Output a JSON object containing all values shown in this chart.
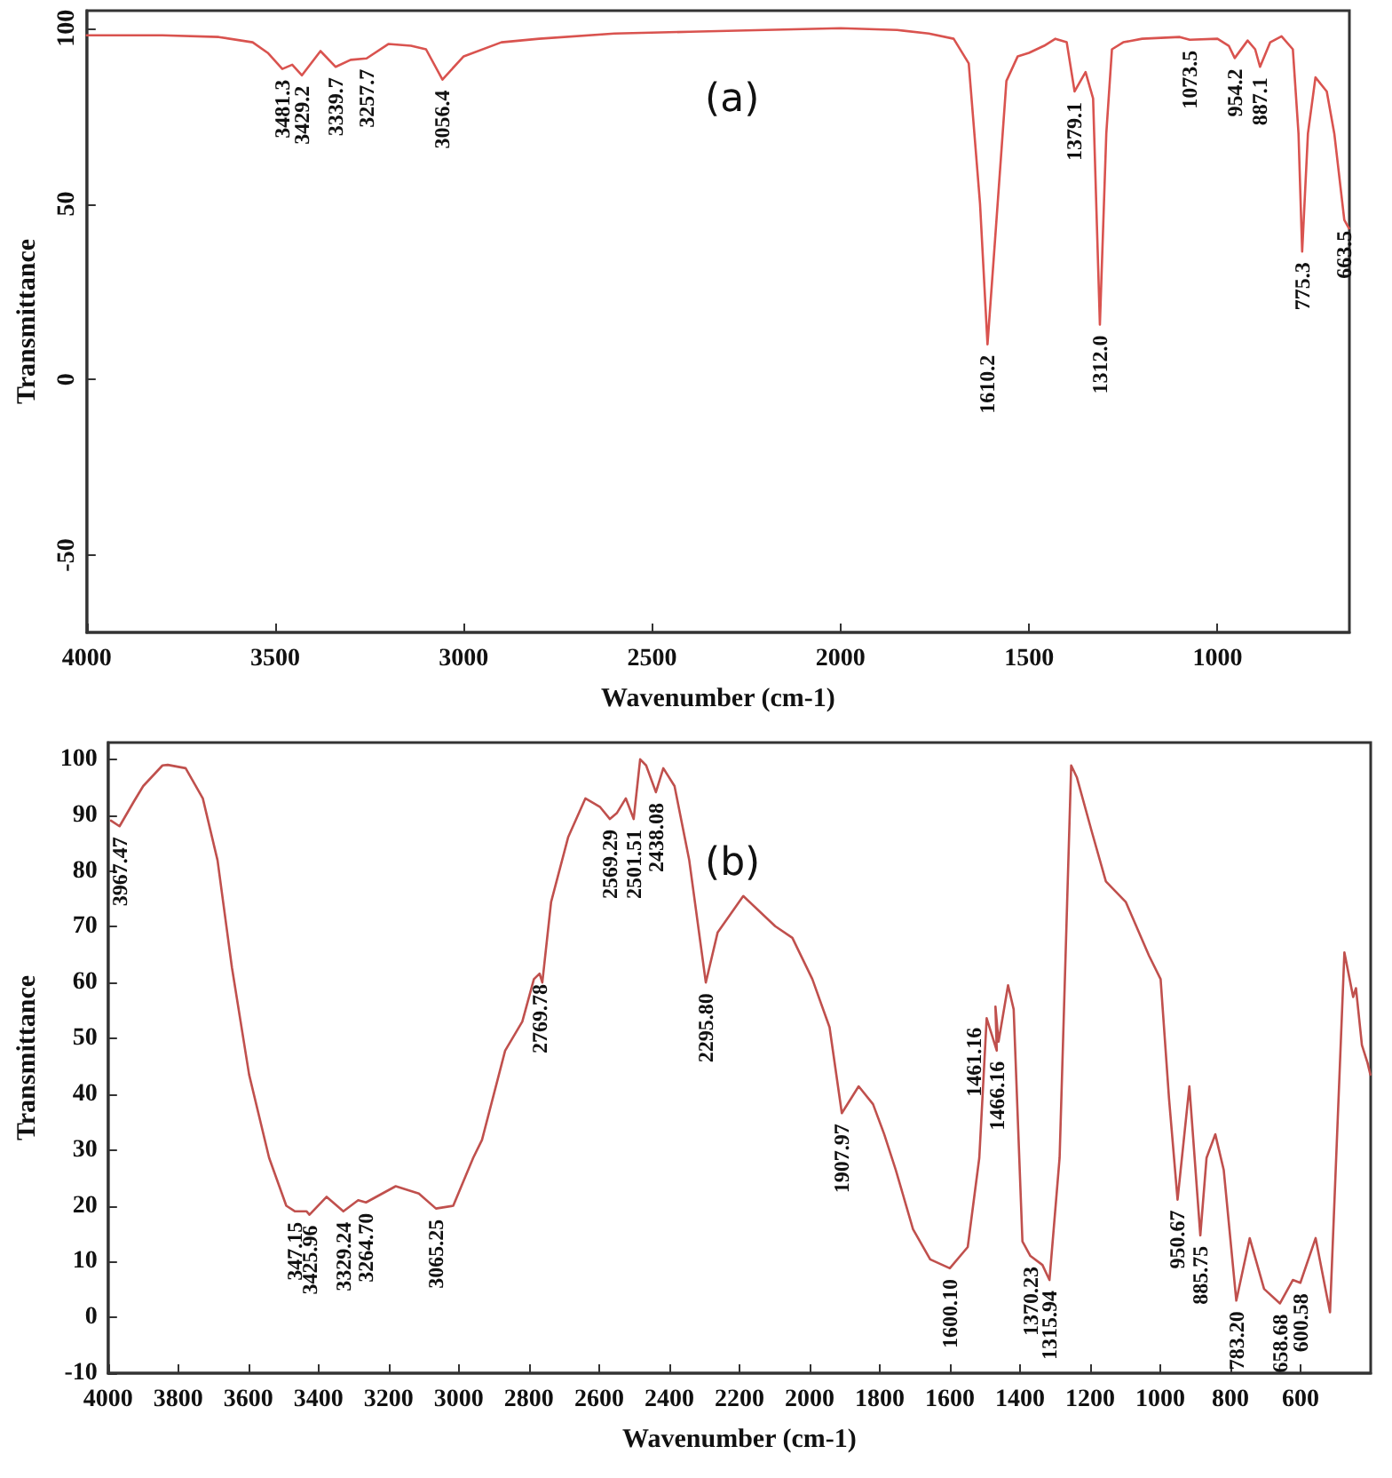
{
  "chart_data": [
    {
      "type": "line",
      "title": "(a)",
      "xlabel": "Wavenumber (cm-1)",
      "ylabel": "Transmittance",
      "xlim": [
        4000,
        650
      ],
      "xticks": [
        4000,
        3500,
        3000,
        2500,
        2000,
        1500,
        1000
      ],
      "ylim": [
        -72,
        105
      ],
      "yticks": [
        -50,
        0,
        50,
        100
      ],
      "grid": false,
      "marker": "none",
      "line_style": "solid",
      "series": [
        {
          "color": "#d9534f",
          "x": [
            4000,
            3800,
            3650,
            3560,
            3520,
            3481.3,
            3455,
            3429.2,
            3380,
            3339.7,
            3300,
            3257.7,
            3200,
            3140,
            3100,
            3056.4,
            3000,
            2900,
            2800,
            2600,
            2400,
            2200,
            2000,
            1850,
            1766,
            1700,
            1660,
            1630,
            1610.2,
            1590,
            1560,
            1530,
            1500,
            1460,
            1430,
            1400,
            1379.1,
            1350,
            1330,
            1312.0,
            1295,
            1280,
            1250,
            1200,
            1100,
            1073.5,
            1000,
            970,
            954.2,
            920,
            900,
            887.1,
            860,
            830,
            800,
            785,
            775.3,
            760,
            740,
            710,
            690,
            663.5,
            651
          ],
          "values": [
            98,
            98,
            97.5,
            96,
            93,
            88.4,
            89.6,
            86.6,
            93.5,
            89,
            91,
            91.4,
            95.5,
            95,
            94,
            85.4,
            92,
            96,
            97,
            98.5,
            99,
            99.5,
            100,
            99.5,
            98.5,
            97,
            90,
            50,
            10,
            40,
            85,
            92,
            93,
            95,
            97,
            96,
            82,
            87.5,
            80,
            15.6,
            70,
            94,
            96,
            97,
            97.5,
            96.7,
            97,
            95,
            91.5,
            96.5,
            94,
            89,
            96,
            97.7,
            94,
            70,
            36.4,
            70,
            86,
            82,
            70,
            45.4,
            43
          ]
        }
      ],
      "annotations": [
        {
          "text": "3481.3",
          "x": 3481.3,
          "y": 88.4
        },
        {
          "text": "3429.2",
          "x": 3429.2,
          "y": 86.6
        },
        {
          "text": "3339.7",
          "x": 3339.7,
          "y": 89
        },
        {
          "text": "3257.7",
          "x": 3257.7,
          "y": 91.4
        },
        {
          "text": "3056.4",
          "x": 3056.4,
          "y": 85.4
        },
        {
          "text": "1610.2",
          "x": 1610.2,
          "y": 10
        },
        {
          "text": "1379.1",
          "x": 1379.1,
          "y": 82
        },
        {
          "text": "1312.0",
          "x": 1312.0,
          "y": 15.6
        },
        {
          "text": "1073.5",
          "x": 1073.5,
          "y": 96.7
        },
        {
          "text": "954.2",
          "x": 954.2,
          "y": 91.5
        },
        {
          "text": "887.1",
          "x": 887.1,
          "y": 89
        },
        {
          "text": "775.3",
          "x": 775.3,
          "y": 36.4
        },
        {
          "text": "663.5",
          "x": 663.5,
          "y": 45.4
        }
      ]
    },
    {
      "type": "line",
      "title": "(b)",
      "xlabel": "Wavenumber (cm-1)",
      "ylabel": "Transmittance",
      "xlim": [
        4000,
        400
      ],
      "xticks": [
        4000,
        3800,
        3600,
        3400,
        3200,
        3000,
        2800,
        2600,
        2400,
        2200,
        2000,
        1800,
        1600,
        1400,
        1200,
        1000,
        800,
        600
      ],
      "ylim": [
        -10,
        103
      ],
      "yticks": [
        -10,
        0,
        10,
        20,
        30,
        40,
        50,
        60,
        70,
        80,
        90,
        100
      ],
      "grid": false,
      "marker": "none",
      "line_style": "solid",
      "series": [
        {
          "color": "#c0504d",
          "x": [
            3992,
            3967.47,
            3926,
            3900,
            3845,
            3830,
            3779,
            3730,
            3688,
            3647,
            3598,
            3541,
            3492,
            3467,
            3434,
            3425.96,
            3377,
            3329.24,
            3287,
            3264.7,
            3180,
            3114,
            3065.25,
            3016,
            2959,
            2934,
            2868,
            2819,
            2786,
            2769.78,
            2762,
            2737,
            2688,
            2639,
            2598,
            2569.29,
            2549,
            2524,
            2501.51,
            2483,
            2466,
            2438.08,
            2417,
            2385,
            2343,
            2295.8,
            2262,
            2189,
            2098,
            2049,
            1992,
            1943,
            1907.97,
            1860,
            1819,
            1787,
            1754,
            1705,
            1656,
            1600.1,
            1549,
            1516,
            1495,
            1466.16,
            1470,
            1461.16,
            1434,
            1418,
            1393,
            1370.23,
            1336,
            1315.94,
            1287,
            1254,
            1238,
            1196,
            1155,
            1098,
            1032,
            999,
            975,
            950.67,
            917,
            885.75,
            868,
            843,
            819,
            783.2,
            745,
            704,
            658.68,
            622,
            600.58,
            557,
            516,
            475,
            450,
            442,
            425,
            409,
            401
          ],
          "values": [
            89,
            88,
            92.5,
            95.2,
            98.9,
            99,
            98.4,
            93,
            81.9,
            62.7,
            43.5,
            28.6,
            20,
            19,
            19,
            18.4,
            21.6,
            19,
            21,
            20.6,
            23.5,
            22.2,
            19.5,
            20,
            28.6,
            31.8,
            47.8,
            53,
            60.6,
            61.6,
            60,
            74.4,
            86.1,
            93,
            91.5,
            89.3,
            90.4,
            93,
            89.3,
            100,
            98.9,
            94.1,
            98.4,
            95.2,
            81.9,
            60,
            69,
            75.5,
            70.1,
            68,
            60.6,
            52,
            36.6,
            41.4,
            38.2,
            32.8,
            26.4,
            15.8,
            10.4,
            8.8,
            12.6,
            28.6,
            53.6,
            47.8,
            55.7,
            49.4,
            59.5,
            55.2,
            13.6,
            11,
            9.4,
            6.7,
            28.6,
            98.9,
            96.8,
            87.2,
            78.1,
            74.4,
            64.8,
            60.6,
            39.2,
            21.1,
            41.4,
            14.7,
            28.6,
            32.8,
            26.4,
            3,
            14.2,
            5.1,
            2.5,
            6.7,
            6.2,
            14.2,
            0.9,
            65.4,
            57.4,
            59,
            48.8,
            45.6,
            43.5
          ]
        }
      ],
      "annotations": [
        {
          "text": "3967.47",
          "x": 3967.47,
          "y": 88
        },
        {
          "text": "347.15",
          "x": 3467,
          "y": 19
        },
        {
          "text": "3425.96",
          "x": 3425.96,
          "y": 18.4
        },
        {
          "text": "3329.24",
          "x": 3329.24,
          "y": 19
        },
        {
          "text": "3264.70",
          "x": 3264.7,
          "y": 20.6
        },
        {
          "text": "3065.25",
          "x": 3065.25,
          "y": 19.5
        },
        {
          "text": "2769.78",
          "x": 2769.78,
          "y": 61.6
        },
        {
          "text": "2569.29",
          "x": 2569.29,
          "y": 89.3
        },
        {
          "text": "2501.51",
          "x": 2501.51,
          "y": 89.3
        },
        {
          "text": "2438.08",
          "x": 2438.08,
          "y": 94.1
        },
        {
          "text": "2295.80",
          "x": 2295.8,
          "y": 60
        },
        {
          "text": "1907.97",
          "x": 1907.97,
          "y": 36.6
        },
        {
          "text": "1600.10",
          "x": 1600.1,
          "y": 8.8
        },
        {
          "text": "1466.16",
          "x": 1466.16,
          "y": 47.8
        },
        {
          "text": "1461.16",
          "x": 1461.16,
          "y": 49.4
        },
        {
          "text": "1370.23",
          "x": 1370.23,
          "y": 11
        },
        {
          "text": "1315.94",
          "x": 1315.94,
          "y": 6.7
        },
        {
          "text": "950.67",
          "x": 950.67,
          "y": 21.1
        },
        {
          "text": "885.75",
          "x": 885.75,
          "y": 14.7
        },
        {
          "text": "783.20",
          "x": 783.2,
          "y": 3
        },
        {
          "text": "658.68",
          "x": 658.68,
          "y": 2.5
        },
        {
          "text": "600.58",
          "x": 600.58,
          "y": 6.2
        }
      ]
    }
  ]
}
